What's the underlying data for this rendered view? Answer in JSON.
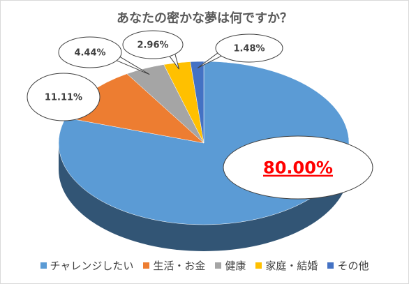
{
  "chart_data": {
    "type": "pie",
    "title": "あなたの密かな夢は何ですか？",
    "categories": [
      "チャレンジしたい",
      "生活・お金",
      "健康",
      "家庭・結婚",
      "その他"
    ],
    "values": [
      80.0,
      11.11,
      4.44,
      2.96,
      1.48
    ],
    "data_labels": [
      "80.00%",
      "11.11%",
      "4.44%",
      "2.96%",
      "1.48%"
    ],
    "colors": [
      "#5b9bd5",
      "#ed7d31",
      "#a5a5a5",
      "#ffc000",
      "#4472c4"
    ],
    "highlight_label_color": "#ff0000",
    "legend_position": "bottom",
    "style": "3d"
  }
}
